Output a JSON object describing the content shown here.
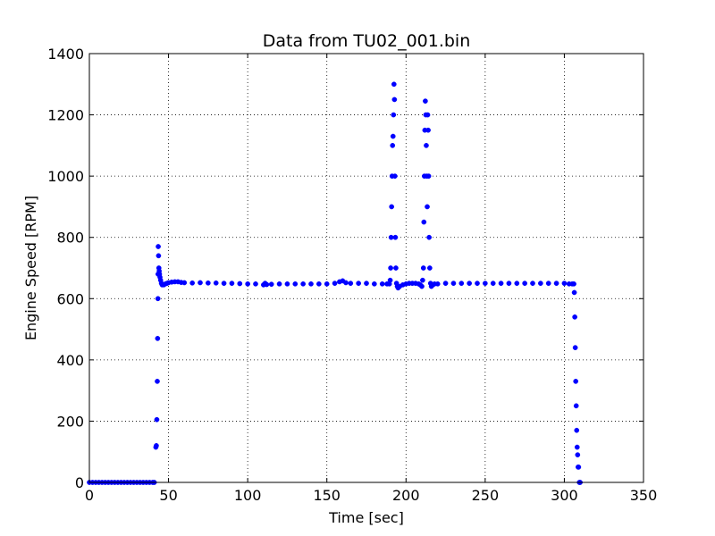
{
  "chart_data": {
    "type": "scatter",
    "title": "Data from TU02_001.bin",
    "xlabel": "Time [sec]",
    "ylabel": "Engine Speed [RPM]",
    "xlim": [
      0,
      350
    ],
    "ylim": [
      0,
      1400
    ],
    "xticks": [
      0,
      50,
      100,
      150,
      200,
      250,
      300,
      350
    ],
    "yticks": [
      0,
      200,
      400,
      600,
      800,
      1000,
      1200,
      1400
    ],
    "xtick_labels": [
      "0",
      "50",
      "100",
      "150",
      "200",
      "250",
      "300",
      "350"
    ],
    "ytick_labels": [
      "0",
      "200",
      "400",
      "600",
      "800",
      "1000",
      "1200",
      "1400"
    ],
    "grid": true,
    "legend": "none",
    "marker_color": "#0000ff",
    "series": [
      {
        "x": [
          0,
          2,
          4,
          6,
          8,
          10,
          12,
          14,
          16,
          18,
          20,
          22,
          24,
          26,
          28,
          30,
          32,
          34,
          36,
          38,
          40,
          41,
          42,
          42.3,
          42.6,
          42.9,
          43.1,
          43.3,
          43.4,
          43.5,
          43.7,
          43.9,
          44.1,
          44.3,
          44.6,
          45,
          45.5,
          46,
          47,
          48,
          49,
          50,
          52,
          54,
          56,
          58,
          60,
          65,
          70,
          75,
          80,
          85,
          90,
          95,
          100,
          105,
          110,
          111,
          112,
          115,
          120,
          125,
          130,
          135,
          140,
          145,
          150,
          155,
          158,
          160,
          162,
          165,
          170,
          175,
          180,
          185,
          188,
          189.5,
          190,
          190.3,
          190.6,
          190.9,
          191.2,
          191.5,
          191.8,
          192.1,
          192.4,
          192.7,
          193.0,
          193.3,
          193.6,
          194,
          194.5,
          195,
          196,
          198,
          200,
          202,
          204,
          206,
          208,
          209,
          210,
          210.5,
          211,
          211.3,
          211.6,
          211.9,
          212.2,
          212.5,
          212.8,
          213.1,
          213.4,
          213.7,
          214,
          214.3,
          214.6,
          215,
          215.5,
          216,
          217,
          218,
          220,
          225,
          230,
          235,
          240,
          245,
          250,
          255,
          260,
          265,
          270,
          275,
          280,
          285,
          290,
          295,
          300,
          303,
          305,
          306,
          306.3,
          306.6,
          306.9,
          307.2,
          307.5,
          307.8,
          308.1,
          308.4,
          308.7,
          309,
          309.5,
          310
        ],
        "y": [
          0,
          0,
          0,
          0,
          0,
          0,
          0,
          0,
          0,
          0,
          0,
          0,
          0,
          0,
          0,
          0,
          0,
          0,
          0,
          0,
          0,
          0,
          115,
          120,
          205,
          330,
          470,
          600,
          680,
          770,
          740,
          700,
          690,
          680,
          670,
          660,
          650,
          645,
          645,
          648,
          650,
          652,
          654,
          655,
          655,
          653,
          652,
          651,
          652,
          651,
          651,
          650,
          650,
          649,
          648,
          648,
          645,
          650,
          646,
          647,
          648,
          648,
          648,
          648,
          648,
          648,
          648,
          650,
          655,
          658,
          652,
          650,
          650,
          650,
          648,
          648,
          648,
          648,
          660,
          700,
          800,
          900,
          1000,
          1100,
          1130,
          1200,
          1300,
          1250,
          1000,
          800,
          700,
          650,
          640,
          635,
          640,
          645,
          648,
          650,
          650,
          650,
          648,
          645,
          640,
          660,
          700,
          850,
          1000,
          1150,
          1245,
          1200,
          1100,
          1000,
          900,
          1200,
          1150,
          1000,
          800,
          700,
          650,
          640,
          645,
          648,
          648,
          650,
          650,
          650,
          650,
          650,
          650,
          650,
          650,
          650,
          650,
          650,
          650,
          650,
          650,
          650,
          650,
          648,
          648,
          648,
          620,
          540,
          440,
          330,
          250,
          170,
          115,
          90,
          50,
          50,
          0,
          0
        ]
      }
    ]
  }
}
